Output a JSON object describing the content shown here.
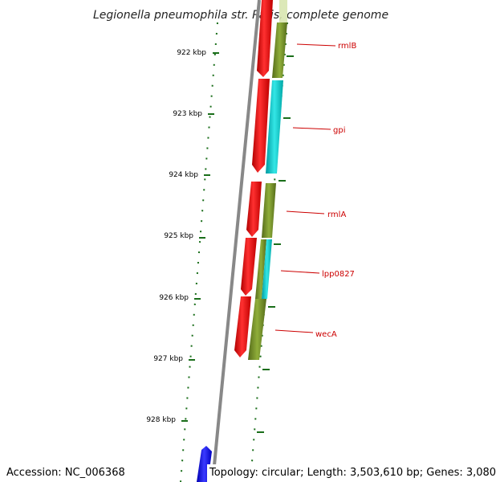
{
  "title": "Legionella pneumophila str. Paris, complete genome",
  "ticks": [
    {
      "label": "922 kbp"
    },
    {
      "label": "923 kbp"
    },
    {
      "label": "924 kbp"
    },
    {
      "label": "925 kbp"
    },
    {
      "label": "926 kbp"
    },
    {
      "label": "927 kbp"
    },
    {
      "label": "928 kbp"
    }
  ],
  "genes": [
    {
      "name": "rmlB"
    },
    {
      "name": "gpi"
    },
    {
      "name": "rmlA"
    },
    {
      "name": "lpp0827"
    },
    {
      "name": "wecA"
    }
  ],
  "footer": {
    "accession": "Accession: NC_006368",
    "topology": "Topology: circular; Length: 3,503,610 bp; Genes: 3,080"
  },
  "colors": {
    "cds_forward": "#ff0000",
    "cds_blue": "#1a1aff",
    "gc_olive": "#6b8e23",
    "gc_cyan": "#00cccc",
    "tick": "#1a6e1a",
    "backbone": "#888888",
    "label": "#cc0000"
  }
}
